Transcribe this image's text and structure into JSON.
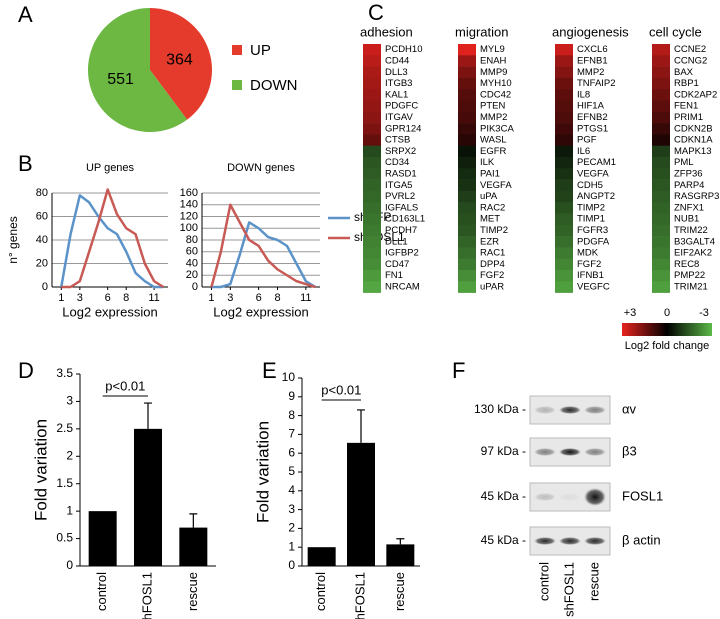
{
  "panels": [
    "A",
    "B",
    "C",
    "D",
    "E",
    "F"
  ],
  "chart_data": [
    {
      "type": "pie",
      "categories": [
        "UP",
        "DOWN"
      ],
      "values": [
        364,
        551
      ],
      "colors": [
        "#e53b2c",
        "#6cb843"
      ]
    },
    {
      "type": "line",
      "title": "UP genes",
      "ylabel": "n° genes",
      "xlabel": "Log2 expression",
      "x": [
        1,
        2,
        3,
        4,
        5,
        6,
        7,
        8,
        9,
        10,
        11,
        12
      ],
      "xlim": [
        0,
        12.5
      ],
      "xticks": [
        1,
        3,
        6,
        8,
        11
      ],
      "ylim": [
        0,
        80
      ],
      "yticks": [
        0,
        20,
        40,
        60,
        80
      ],
      "grid": true,
      "series": [
        {
          "color": "#5b93c9",
          "values": [
            0,
            45,
            78,
            72,
            60,
            50,
            45,
            30,
            12,
            5,
            0,
            0
          ]
        },
        {
          "color": "#c75a55",
          "values": [
            0,
            0,
            5,
            30,
            55,
            83,
            62,
            50,
            45,
            20,
            5,
            0
          ]
        }
      ]
    },
    {
      "type": "line",
      "title": "DOWN genes",
      "xlabel": "Log2 expression",
      "x": [
        1,
        2,
        3,
        4,
        5,
        6,
        7,
        8,
        9,
        10,
        11,
        12
      ],
      "xlim": [
        0,
        12.5
      ],
      "xticks": [
        1,
        3,
        6,
        8,
        11
      ],
      "ylim": [
        0,
        160
      ],
      "yticks": [
        0,
        20,
        40,
        60,
        80,
        100,
        120,
        140,
        160
      ],
      "grid": true,
      "legend": "right",
      "series": [
        {
          "name": "shGFP",
          "color": "#5b93c9",
          "values": [
            0,
            0,
            5,
            55,
            110,
            100,
            85,
            80,
            70,
            40,
            10,
            0
          ]
        },
        {
          "name": "shFOSL1",
          "color": "#c75a55",
          "values": [
            0,
            60,
            140,
            110,
            80,
            70,
            45,
            30,
            20,
            10,
            5,
            0
          ]
        }
      ]
    },
    {
      "type": "heatmap",
      "clim": [
        -3,
        3
      ],
      "colormap": [
        "#e8231f",
        "#000000",
        "#5cb848"
      ],
      "highlight_color": "#e02020",
      "colorbar_label": "Log2 fold change",
      "colorbar_ticks": [
        {
          "value": 3,
          "label": "+3"
        },
        0,
        -3
      ],
      "groups": [
        {
          "title": "adhesion",
          "highlight": [
            3,
            6
          ],
          "genes": [
            "PCDH10",
            "CD44",
            "DLL3",
            "ITGB3",
            "KAL1",
            "PDGFC",
            "ITGAV",
            "GPR124",
            "CTSB",
            "SRPX2",
            "CD34",
            "RASD1",
            "ITGA5",
            "PVRL2",
            "IGFALS",
            "CD163L1",
            "PCDH7",
            "DLL1",
            "IGFBP2",
            "CD47",
            "FN1",
            "NRCAM"
          ],
          "values": [
            2.6,
            2.4,
            2.2,
            2.1,
            2.0,
            1.9,
            1.8,
            1.6,
            1.3,
            -1.2,
            -1.4,
            -1.5,
            -1.6,
            -1.7,
            -1.8,
            -1.9,
            -2.0,
            -2.1,
            -2.2,
            -2.3,
            -2.5,
            -2.7
          ]
        },
        {
          "title": "migration",
          "genes": [
            "MYL9",
            "ENAH",
            "MMP9",
            "MYH10",
            "CDC42",
            "PTEN",
            "MMP2",
            "PIK3CA",
            "WASL",
            "EGFR",
            "ILK",
            "PAI1",
            "VEGFA",
            "uPA",
            "RAC2",
            "MET",
            "TIMP2",
            "EZR",
            "RAC1",
            "DPP4",
            "FGF2",
            "uPAR"
          ],
          "values": [
            2.9,
            2.0,
            1.6,
            1.3,
            1.1,
            1.0,
            0.9,
            0.7,
            0.5,
            -0.3,
            -0.5,
            -0.7,
            -0.8,
            -1.0,
            -1.2,
            -1.3,
            -1.4,
            -1.6,
            -1.8,
            -2.0,
            -2.3,
            -2.6
          ]
        },
        {
          "title": "angiogenesis",
          "genes": [
            "CXCL6",
            "EFNB1",
            "MMP2",
            "TNFAIP2",
            "IL8",
            "HIF1A",
            "EFNB2",
            "PTGS1",
            "PGF",
            "IL6",
            "PECAM1",
            "VEGFA",
            "CDH5",
            "ANGPT2",
            "TIMP2",
            "TIMP1",
            "FGFR3",
            "PDGFA",
            "MDK",
            "FGF2",
            "IFNB1",
            "VEGFC"
          ],
          "values": [
            2.6,
            2.0,
            1.7,
            1.4,
            1.2,
            1.1,
            1.0,
            0.8,
            0.6,
            -0.4,
            -0.6,
            -0.8,
            -1.0,
            -1.1,
            -1.3,
            -1.5,
            -1.6,
            -1.8,
            -2.0,
            -2.2,
            -2.4,
            -2.6
          ]
        },
        {
          "title": "cell cycle",
          "genes": [
            "CCNE2",
            "CCNG2",
            "BAX",
            "RBP1",
            "CDK2AP2",
            "FEN1",
            "PRIM1",
            "CDKN2B",
            "CDKN1A",
            "MAPK13",
            "PML",
            "ZFP36",
            "PARP4",
            "RASGRP3",
            "ZNFX1",
            "NUB1",
            "TRIM22",
            "B3GALT4",
            "EIF2AK2",
            "REC8",
            "PMP22",
            "TRIM21"
          ],
          "values": [
            2.3,
            2.0,
            1.8,
            1.6,
            1.4,
            1.2,
            1.0,
            0.7,
            0.4,
            -1.0,
            -1.2,
            -1.3,
            -1.4,
            -1.5,
            -1.6,
            -1.7,
            -1.8,
            -1.9,
            -2.0,
            -2.2,
            -2.4,
            -2.6
          ]
        }
      ]
    },
    {
      "type": "bar",
      "ylabel": "Fold variation",
      "categories": [
        "control",
        "shFOSL1",
        "rescue"
      ],
      "values": [
        1,
        2.5,
        0.7
      ],
      "errors": [
        null,
        0.47,
        0.25
      ],
      "color": "#000000",
      "ylim": [
        0,
        3.5
      ],
      "yticks": [
        0,
        0.5,
        1,
        1.5,
        2,
        2.5,
        3,
        3.5
      ],
      "annotation": "p<0.01"
    },
    {
      "type": "bar",
      "ylabel": "Fold variation",
      "categories": [
        "control",
        "shFOSL1",
        "rescue"
      ],
      "values": [
        1,
        6.55,
        1.15
      ],
      "errors": [
        null,
        1.75,
        0.3
      ],
      "color": "#000000",
      "ylim": [
        0,
        10
      ],
      "yticks": [
        0,
        1,
        2,
        3,
        4,
        5,
        6,
        7,
        8,
        9,
        10
      ],
      "annotation": "p<0.01"
    }
  ],
  "blot": {
    "markers": [
      "130 kDa -",
      "97 kDa -",
      "45 kDa -",
      "45 kDa -"
    ],
    "proteins": [
      "αv",
      "β3",
      "FOSL1",
      "β actin"
    ],
    "lanes": [
      "control",
      "shFOSL1",
      "rescue"
    ]
  }
}
